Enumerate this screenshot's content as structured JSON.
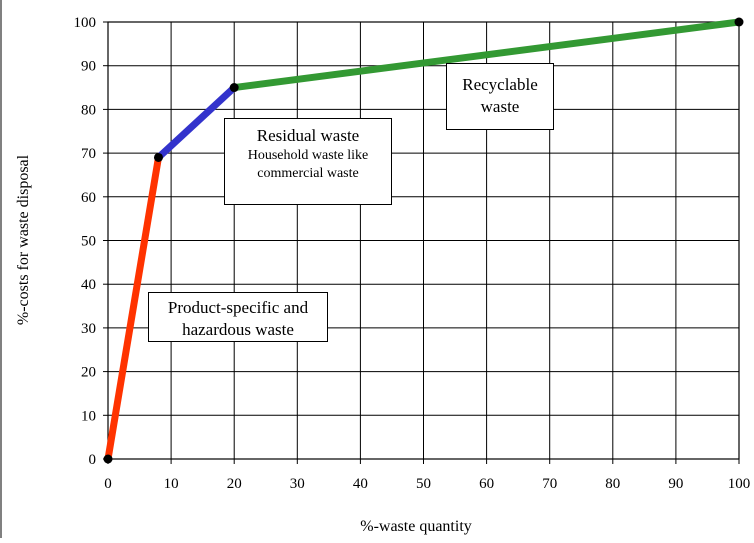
{
  "chart_data": {
    "type": "line",
    "title": "",
    "xlabel": "%-waste quantity",
    "ylabel": "%-costs for waste disposal",
    "xlim": [
      0,
      100
    ],
    "ylim": [
      0,
      100
    ],
    "x_ticks": [
      "0",
      "10",
      "20",
      "30",
      "40",
      "50",
      "60",
      "70",
      "80",
      "90",
      "100"
    ],
    "y_ticks": [
      "0",
      "10",
      "20",
      "30",
      "40",
      "50",
      "60",
      "70",
      "80",
      "90",
      "100"
    ],
    "grid": true,
    "series": [
      {
        "color": "#ff3300",
        "points": [
          [
            0,
            0
          ],
          [
            8,
            69
          ]
        ]
      },
      {
        "color": "#3333cc",
        "points": [
          [
            8,
            69
          ],
          [
            20,
            85
          ]
        ]
      },
      {
        "color": "#339933",
        "points": [
          [
            20,
            85
          ],
          [
            100,
            100
          ]
        ]
      }
    ],
    "markers": [
      [
        0,
        0
      ],
      [
        8,
        69
      ],
      [
        20,
        85
      ],
      [
        100,
        100
      ]
    ],
    "annotations": {
      "hazardous": {
        "line1": "Product-specific and",
        "line2": "hazardous waste"
      },
      "residual": {
        "title": "Residual waste",
        "line1": "Household waste like",
        "line2": "commercial waste"
      },
      "recyclable": {
        "line1": "Recyclable",
        "line2": "waste"
      }
    }
  }
}
